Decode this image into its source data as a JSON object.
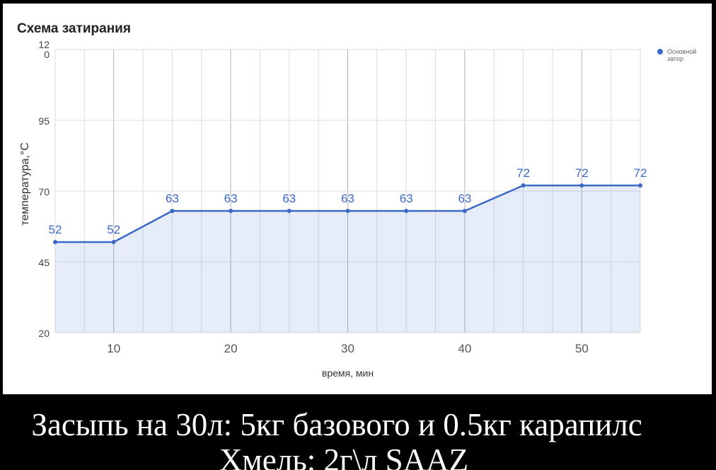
{
  "chart_data": {
    "type": "area",
    "title": "Схема затирания",
    "xlabel": "время, мин",
    "ylabel": "температура,°C",
    "x_ticks": [
      10,
      20,
      30,
      40,
      50
    ],
    "y_ticks": [
      {
        "value": 20,
        "label": "20"
      },
      {
        "value": 45,
        "label": "45"
      },
      {
        "value": 70,
        "label": "70"
      },
      {
        "value": 95,
        "label": "95"
      },
      {
        "value": 120,
        "label": "12\n0"
      }
    ],
    "xlim": [
      5,
      55
    ],
    "ylim": [
      20,
      120
    ],
    "grid": true,
    "legend_position": "top-right",
    "series": [
      {
        "name": "Основной затор",
        "color": "#3c68c8",
        "x": [
          5,
          10,
          15,
          20,
          25,
          30,
          35,
          40,
          45,
          50,
          55
        ],
        "values": [
          52,
          52,
          63,
          63,
          63,
          63,
          63,
          63,
          72,
          72,
          72
        ],
        "labels": [
          "52",
          "52",
          "63",
          "63",
          "63",
          "63",
          "63",
          "63",
          "72",
          "72",
          "72"
        ]
      }
    ]
  },
  "caption": {
    "line1": "Засыпь на 30л: 5кг базового и 0.5кг карапилс",
    "line2": "Хмель: 2г\\л SAAZ"
  }
}
